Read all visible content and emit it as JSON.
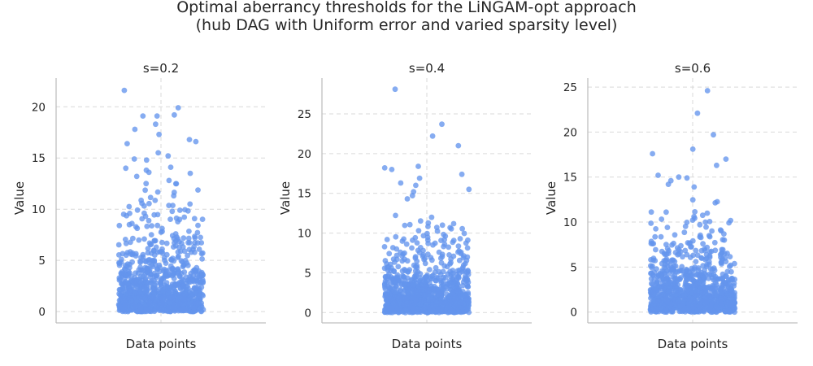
{
  "chart_data": {
    "type": "scatter",
    "title_line1": "Optimal aberrancy thresholds for the LiNGAM-opt approach",
    "title_line2": "(hub DAG with Uniform error and varied sparsity level)",
    "point_color": "#6495ED",
    "panels": [
      {
        "title": "s=0.2",
        "xlabel": "Data points",
        "ylabel": "Value",
        "ylim": [
          -1.1,
          22.8
        ],
        "yticks": [
          0,
          5,
          10,
          15,
          20
        ],
        "grid": true,
        "n_points": 1000,
        "notable_points": [
          21.6,
          19.9,
          19.2,
          19.1,
          19.1,
          18.3,
          17.8,
          17.3,
          16.8,
          16.6,
          16.4,
          15.5,
          15.2,
          14.9,
          14.8,
          14.1,
          14.0,
          13.8,
          13.6,
          13.5,
          13.2,
          12.8,
          12.5
        ]
      },
      {
        "title": "s=0.4",
        "xlabel": "Data points",
        "ylabel": "Value",
        "ylim": [
          -1.3,
          29.5
        ],
        "yticks": [
          0,
          5,
          10,
          15,
          20,
          25
        ],
        "grid": true,
        "n_points": 1000,
        "notable_points": [
          28.1,
          23.7,
          22.2,
          21.0,
          18.4,
          18.2,
          18.0,
          17.4,
          16.9,
          16.3,
          16.0,
          15.5,
          15.2,
          14.7,
          14.3
        ]
      },
      {
        "title": "s=0.6",
        "xlabel": "Data points",
        "ylabel": "Value",
        "ylim": [
          -1.2,
          26.0
        ],
        "yticks": [
          0,
          5,
          10,
          15,
          20,
          25
        ],
        "grid": true,
        "n_points": 1000,
        "notable_points": [
          24.6,
          22.1,
          19.7,
          18.1,
          17.6,
          17.0,
          16.3,
          15.2,
          15.0,
          14.9,
          14.6,
          14.2,
          13.9
        ]
      }
    ]
  }
}
